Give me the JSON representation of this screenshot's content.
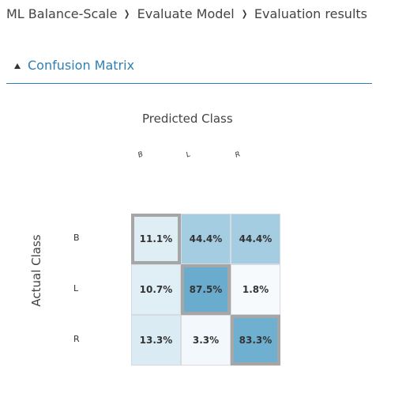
{
  "breadcrumb": {
    "items": [
      "ML Balance-Scale",
      "Evaluate Model",
      "Evaluation results"
    ]
  },
  "section": {
    "title": "Confusion Matrix"
  },
  "chart_data": {
    "type": "heatmap",
    "title": "",
    "xlabel": "Predicted Class",
    "ylabel": "Actual Class",
    "columns": [
      "B",
      "L",
      "R"
    ],
    "rows": [
      "B",
      "L",
      "R"
    ],
    "values": [
      [
        11.1,
        44.4,
        44.4
      ],
      [
        10.7,
        87.5,
        1.8
      ],
      [
        13.3,
        3.3,
        83.3
      ]
    ],
    "labels": [
      [
        "11.1%",
        "44.4%",
        "44.4%"
      ],
      [
        "10.7%",
        "87.5%",
        "1.8%"
      ],
      [
        "13.3%",
        "3.3%",
        "83.3%"
      ]
    ],
    "scale_min": 0,
    "scale_max": 100,
    "low_color": "#ffffff",
    "high_color": "#5aa3c9",
    "diagonal_border_color": "#a6a6a6"
  }
}
